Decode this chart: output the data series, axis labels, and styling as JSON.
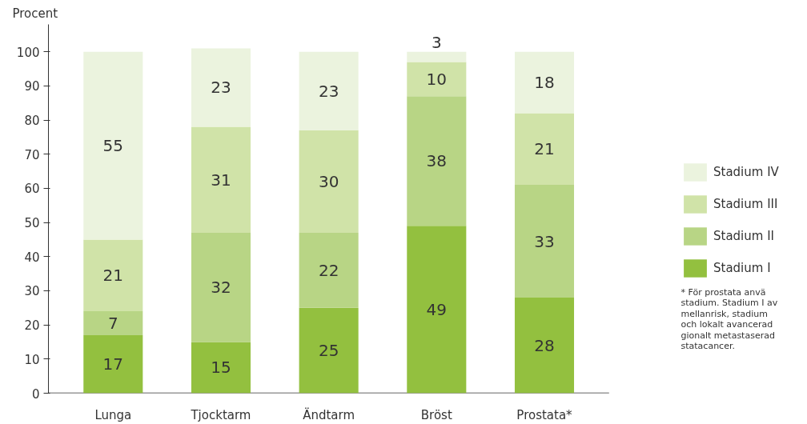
{
  "chart_data": {
    "type": "bar",
    "stacked": true,
    "ylabel": "Procent",
    "categories": [
      "Lunga",
      "Tjocktarm",
      "Ändtarm",
      "Bröst",
      "Prostata*"
    ],
    "series": [
      {
        "name": "Stadium I",
        "color": "#93c03f",
        "values": [
          17,
          15,
          25,
          49,
          28
        ]
      },
      {
        "name": "Stadium II",
        "color": "#b8d585",
        "values": [
          7,
          32,
          22,
          38,
          33
        ]
      },
      {
        "name": "Stadium III",
        "color": "#d0e3a8",
        "values": [
          21,
          31,
          30,
          10,
          21
        ]
      },
      {
        "name": "Stadium IV",
        "color": "#ebf3de",
        "values": [
          55,
          23,
          23,
          3,
          18
        ]
      }
    ],
    "ylim": [
      0,
      108
    ],
    "yticks": [
      0,
      10,
      20,
      30,
      40,
      50,
      60,
      70,
      80,
      90,
      100
    ],
    "data_labels": true,
    "grid": false,
    "legend": "right",
    "annotations": [
      "* För prostata anvä\nstadium. Stadium I av\nmellanrisk, stadium\noch lokalt avancerad\ngionalt metastaserad\nstatacancer."
    ]
  }
}
